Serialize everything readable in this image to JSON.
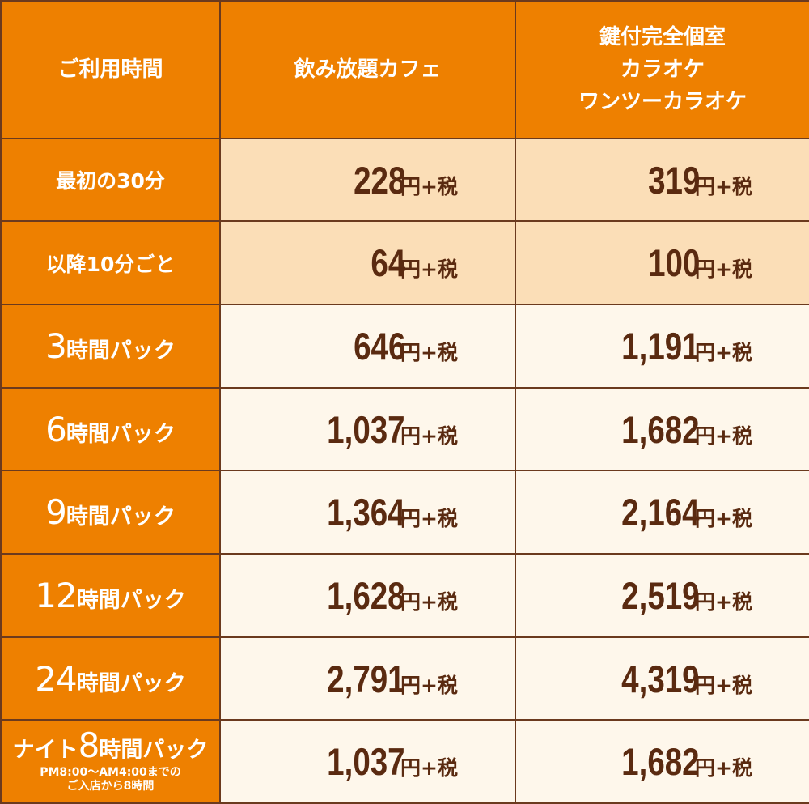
{
  "header": {
    "col0": "ご利用時間",
    "col1": "飲み放題カフェ",
    "col2_lines": [
      "鍵付完全個室",
      "カラオケ",
      "ワンツーカラオケ"
    ]
  },
  "price_unit": "円+税",
  "rows": [
    {
      "label": "最初の30分",
      "cafe": "228",
      "karaoke": "319"
    },
    {
      "label": "以降10分ごと",
      "cafe": "64",
      "karaoke": "100"
    },
    {
      "hours": "3",
      "suffix": "時間パック",
      "cafe": "646",
      "karaoke": "1,191"
    },
    {
      "hours": "6",
      "suffix": "時間パック",
      "cafe": "1,037",
      "karaoke": "1,682"
    },
    {
      "hours": "9",
      "suffix": "時間パック",
      "cafe": "1,364",
      "karaoke": "2,164"
    },
    {
      "hours": "12",
      "suffix": "時間パック",
      "cafe": "1,628",
      "karaoke": "2,519"
    },
    {
      "hours": "24",
      "suffix": "時間パック",
      "cafe": "2,791",
      "karaoke": "4,319"
    },
    {
      "night_prefix": "ナイト",
      "hours": "8",
      "suffix": "時間パック",
      "note_lines": [
        "PM8:00～AM4:00までの",
        "ご入店から8時間"
      ],
      "cafe": "1,037",
      "karaoke": "1,682"
    }
  ],
  "colors": {
    "header_orange": "#ee8000",
    "light_row": "#fbdeb7",
    "pale_row": "#fef7eb",
    "price_text": "#5a2a10",
    "border": "#6b3a1e"
  }
}
